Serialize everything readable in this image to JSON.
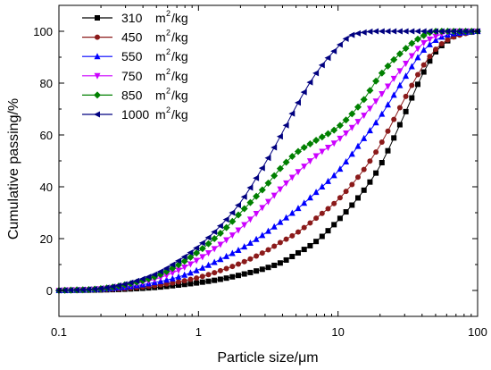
{
  "chart_data": {
    "type": "line",
    "xlabel": "Particle size/μm",
    "ylabel": "Cumulative passing/%",
    "xscale": "log",
    "xlim": [
      0.1,
      100
    ],
    "ylim": [
      -10,
      110
    ],
    "x_ticks": [
      {
        "value": 0.1,
        "label": "0.1"
      },
      {
        "value": 1,
        "label": "1"
      },
      {
        "value": 10,
        "label": "10"
      },
      {
        "value": 100,
        "label": "100"
      }
    ],
    "y_ticks": [
      {
        "value": 0,
        "label": "0"
      },
      {
        "value": 20,
        "label": "20"
      },
      {
        "value": 40,
        "label": "40"
      },
      {
        "value": 60,
        "label": "60"
      },
      {
        "value": 80,
        "label": "80"
      },
      {
        "value": 100,
        "label": "100"
      }
    ],
    "grid": false,
    "legend_position": "top-left",
    "series": [
      {
        "label": "310",
        "unit_base": "m",
        "unit_sup": "2",
        "unit_tail": "/kg",
        "color": "#000000",
        "marker": "square",
        "points": [
          [
            0.1,
            0
          ],
          [
            0.2,
            0.2
          ],
          [
            0.3,
            0.5
          ],
          [
            0.5,
            1.2
          ],
          [
            0.7,
            2
          ],
          [
            1,
            3
          ],
          [
            1.5,
            4.5
          ],
          [
            2,
            6
          ],
          [
            3,
            8.5
          ],
          [
            4,
            11
          ],
          [
            5,
            14
          ],
          [
            7,
            19
          ],
          [
            10,
            27
          ],
          [
            15,
            38
          ],
          [
            20,
            48
          ],
          [
            30,
            68
          ],
          [
            40,
            83
          ],
          [
            50,
            92
          ],
          [
            60,
            96
          ],
          [
            70,
            98.5
          ],
          [
            100,
            100
          ]
        ]
      },
      {
        "label": "450",
        "unit_base": "m",
        "unit_sup": "2",
        "unit_tail": "/kg",
        "color": "#8b1a1a",
        "marker": "circle",
        "points": [
          [
            0.1,
            0
          ],
          [
            0.2,
            0.3
          ],
          [
            0.3,
            0.8
          ],
          [
            0.5,
            2
          ],
          [
            0.7,
            3.2
          ],
          [
            1,
            5
          ],
          [
            1.5,
            8
          ],
          [
            2,
            10.5
          ],
          [
            3,
            15
          ],
          [
            4,
            19
          ],
          [
            5,
            22
          ],
          [
            7,
            28
          ],
          [
            10,
            35
          ],
          [
            15,
            46
          ],
          [
            20,
            56
          ],
          [
            30,
            74
          ],
          [
            40,
            86
          ],
          [
            50,
            93
          ],
          [
            60,
            96.5
          ],
          [
            80,
            99
          ],
          [
            100,
            100
          ]
        ]
      },
      {
        "label": "550",
        "unit_base": "m",
        "unit_sup": "2",
        "unit_tail": "/kg",
        "color": "#0000ff",
        "marker": "triangle-up",
        "points": [
          [
            0.1,
            0
          ],
          [
            0.2,
            0.5
          ],
          [
            0.3,
            1.3
          ],
          [
            0.5,
            3.2
          ],
          [
            0.7,
            5
          ],
          [
            1,
            8
          ],
          [
            1.5,
            12.5
          ],
          [
            2,
            16
          ],
          [
            3,
            22
          ],
          [
            4,
            27
          ],
          [
            5,
            31
          ],
          [
            7,
            38
          ],
          [
            10,
            46
          ],
          [
            15,
            58
          ],
          [
            20,
            67
          ],
          [
            30,
            82
          ],
          [
            40,
            92
          ],
          [
            50,
            96.5
          ],
          [
            60,
            98.5
          ],
          [
            80,
            99.5
          ],
          [
            100,
            100
          ]
        ]
      },
      {
        "label": "750",
        "unit_base": "m",
        "unit_sup": "2",
        "unit_tail": "/kg",
        "color": "#cc00ff",
        "marker": "triangle-down",
        "points": [
          [
            0.1,
            0
          ],
          [
            0.2,
            0.6
          ],
          [
            0.3,
            1.8
          ],
          [
            0.5,
            4.5
          ],
          [
            0.7,
            7.5
          ],
          [
            1,
            12
          ],
          [
            1.5,
            18.5
          ],
          [
            2,
            24
          ],
          [
            3,
            33
          ],
          [
            4,
            40
          ],
          [
            5,
            45
          ],
          [
            7,
            52
          ],
          [
            10,
            58
          ],
          [
            15,
            67
          ],
          [
            20,
            75
          ],
          [
            30,
            87
          ],
          [
            40,
            95
          ],
          [
            50,
            98
          ],
          [
            60,
            99.5
          ],
          [
            80,
            100
          ],
          [
            100,
            100
          ]
        ]
      },
      {
        "label": "850",
        "unit_base": "m",
        "unit_sup": "2",
        "unit_tail": "/kg",
        "color": "#008000",
        "marker": "diamond",
        "points": [
          [
            0.1,
            0
          ],
          [
            0.2,
            0.7
          ],
          [
            0.3,
            2.2
          ],
          [
            0.5,
            5.5
          ],
          [
            0.7,
            9.5
          ],
          [
            1,
            15
          ],
          [
            1.5,
            23
          ],
          [
            2,
            30
          ],
          [
            3,
            40
          ],
          [
            4,
            48
          ],
          [
            5,
            53
          ],
          [
            7,
            58
          ],
          [
            10,
            63
          ],
          [
            15,
            73
          ],
          [
            20,
            83
          ],
          [
            30,
            93
          ],
          [
            40,
            98
          ],
          [
            50,
            100
          ],
          [
            60,
            100
          ],
          [
            80,
            100
          ],
          [
            100,
            100
          ]
        ]
      },
      {
        "label": "1000",
        "unit_base": "m",
        "unit_sup": "2",
        "unit_tail": "/kg",
        "color": "#000080",
        "marker": "triangle-left",
        "points": [
          [
            0.1,
            0
          ],
          [
            0.2,
            0.8
          ],
          [
            0.3,
            2.5
          ],
          [
            0.5,
            6.5
          ],
          [
            0.7,
            11
          ],
          [
            1,
            17
          ],
          [
            1.5,
            26
          ],
          [
            2,
            34
          ],
          [
            3,
            49
          ],
          [
            4,
            61
          ],
          [
            5,
            71
          ],
          [
            7,
            84
          ],
          [
            10,
            94
          ],
          [
            12,
            98
          ],
          [
            15,
            99.5
          ],
          [
            20,
            100
          ],
          [
            30,
            100
          ],
          [
            40,
            100
          ],
          [
            50,
            100
          ],
          [
            70,
            100
          ],
          [
            100,
            100
          ]
        ]
      }
    ]
  }
}
